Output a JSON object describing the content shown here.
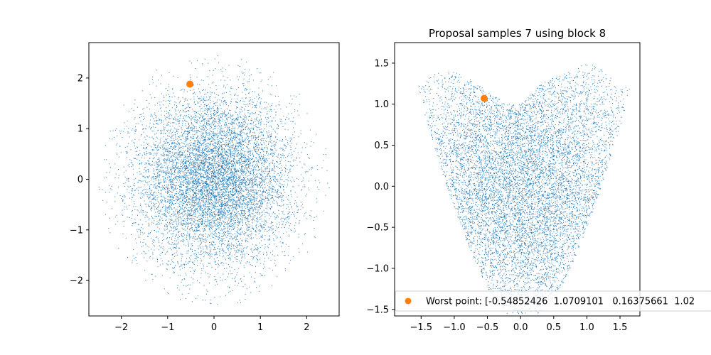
{
  "colors": {
    "samples": "#1f77b4",
    "worst": "#ff7f0e",
    "axes": "#000000",
    "background": "#ffffff"
  },
  "chart_data": [
    {
      "type": "scatter",
      "title": "",
      "xlabel": "",
      "ylabel": "",
      "xlim": [
        -2.7,
        2.7
      ],
      "ylim": [
        -2.7,
        2.7
      ],
      "xticks": [
        -2,
        -1,
        0,
        1,
        2
      ],
      "xtick_labels": [
        "−2",
        "−1",
        "0",
        "1",
        "2"
      ],
      "yticks": [
        -2,
        -1,
        0,
        1,
        2
      ],
      "ytick_labels": [
        "−2",
        "−1",
        "0",
        "1",
        "2"
      ],
      "grid": false,
      "series": [
        {
          "kind": "dense-cloud",
          "distribution": "standard-normal-2d",
          "sample_count": 9000,
          "color": "#1f77b4",
          "point_size": "tiny"
        },
        {
          "kind": "point",
          "x": -0.52,
          "y": 1.88,
          "color": "#ff7f0e",
          "marker": "circle"
        }
      ]
    },
    {
      "type": "scatter",
      "title": "Proposal samples 7 using block 8",
      "xlabel": "",
      "ylabel": "",
      "xlim": [
        -1.9,
        1.8
      ],
      "ylim": [
        -1.58,
        1.75
      ],
      "xticks": [
        -1.5,
        -1.0,
        -0.5,
        0.0,
        0.5,
        1.0,
        1.5
      ],
      "xtick_labels": [
        "−1.5",
        "−1.0",
        "−0.5",
        "0.0",
        "0.5",
        "1.0",
        "1.5"
      ],
      "yticks": [
        -1.5,
        -1.0,
        -0.5,
        0.0,
        0.5,
        1.0,
        1.5
      ],
      "ytick_labels": [
        "−1.5",
        "−1.0",
        "−0.5",
        "0.0",
        "0.5",
        "1.0",
        "1.5"
      ],
      "grid": false,
      "legend_position": "bottom-left",
      "series": [
        {
          "kind": "dense-cloud",
          "distribution": "heart-shaped",
          "sample_count": 9000,
          "color": "#1f77b4",
          "point_size": "tiny"
        },
        {
          "kind": "point",
          "name": "Worst point: [-0.54852426  1.0709101   0.16375661  1.02",
          "x": -0.549,
          "y": 1.071,
          "color": "#ff7f0e",
          "marker": "circle"
        }
      ]
    }
  ]
}
